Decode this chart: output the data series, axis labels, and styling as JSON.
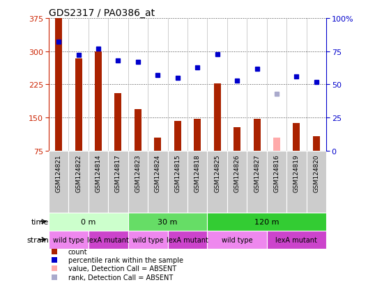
{
  "title": "GDS2317 / PA0386_at",
  "samples": [
    "GSM124821",
    "GSM124822",
    "GSM124814",
    "GSM124817",
    "GSM124823",
    "GSM124824",
    "GSM124815",
    "GSM124818",
    "GSM124825",
    "GSM124826",
    "GSM124827",
    "GSM124816",
    "GSM124819",
    "GSM124820"
  ],
  "counts": [
    375,
    284,
    300,
    205,
    170,
    105,
    143,
    147,
    228,
    128,
    148,
    null,
    138,
    108
  ],
  "counts_absent": [
    null,
    null,
    null,
    null,
    null,
    null,
    null,
    null,
    null,
    null,
    null,
    105,
    null,
    null
  ],
  "percentile_ranks": [
    82,
    72,
    77,
    68,
    67,
    57,
    55,
    63,
    73,
    53,
    62,
    null,
    56,
    52
  ],
  "percentile_ranks_absent": [
    null,
    null,
    null,
    null,
    null,
    null,
    null,
    null,
    null,
    null,
    null,
    43,
    null,
    null
  ],
  "ylim_left": [
    75,
    375
  ],
  "ylim_right": [
    0,
    100
  ],
  "yticks_left": [
    75,
    150,
    225,
    300,
    375
  ],
  "yticks_right": [
    0,
    25,
    50,
    75,
    100
  ],
  "bar_color": "#aa2200",
  "bar_absent_color": "#ffaaaa",
  "dot_color": "#0000cc",
  "dot_absent_color": "#aaaacc",
  "time_groups": [
    {
      "label": "0 m",
      "start": 0,
      "end": 4,
      "color": "#ccffcc"
    },
    {
      "label": "30 m",
      "start": 4,
      "end": 8,
      "color": "#66dd66"
    },
    {
      "label": "120 m",
      "start": 8,
      "end": 14,
      "color": "#33cc33"
    }
  ],
  "strain_groups": [
    {
      "label": "wild type",
      "start": 0,
      "end": 2,
      "color": "#ee88ee"
    },
    {
      "label": "lexA mutant",
      "start": 2,
      "end": 4,
      "color": "#cc44cc"
    },
    {
      "label": "wild type",
      "start": 4,
      "end": 6,
      "color": "#ee88ee"
    },
    {
      "label": "lexA mutant",
      "start": 6,
      "end": 8,
      "color": "#cc44cc"
    },
    {
      "label": "wild type",
      "start": 8,
      "end": 11,
      "color": "#ee88ee"
    },
    {
      "label": "lexA mutant",
      "start": 11,
      "end": 14,
      "color": "#cc44cc"
    }
  ],
  "legend_items": [
    {
      "label": "count",
      "color": "#aa2200"
    },
    {
      "label": "percentile rank within the sample",
      "color": "#0000cc"
    },
    {
      "label": "value, Detection Call = ABSENT",
      "color": "#ffaaaa"
    },
    {
      "label": "rank, Detection Call = ABSENT",
      "color": "#aaaacc"
    }
  ],
  "grid_color": "#444444",
  "bg_color": "#ffffff",
  "sample_bg_color": "#cccccc",
  "left_axis_color": "#cc2200",
  "right_axis_color": "#0000cc"
}
